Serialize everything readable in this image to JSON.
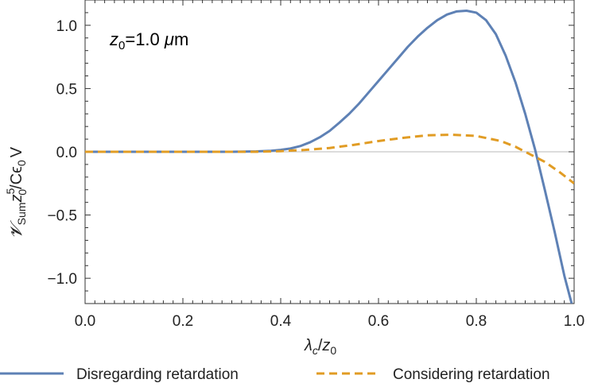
{
  "chart_data": {
    "type": "line",
    "annotation": {
      "symbol": "z",
      "subscript": "0",
      "value": "=1.0 ",
      "unit_prefix": "μ",
      "unit": "m"
    },
    "xlabel": {
      "main": "λ",
      "sub": "c",
      "slash": "/",
      "main2": "z",
      "sub2": "0"
    },
    "ylabel": {
      "main": "𝓥",
      "sub1": "Sum",
      "z": "z",
      "sup": "5",
      "sub2": "0",
      "rest": "/Cϵ",
      "sub3": "0",
      "tail": "V"
    },
    "xlim": [
      0.0,
      1.0
    ],
    "ylim": [
      -1.2,
      1.2
    ],
    "xticks": [
      "0.0",
      "0.2",
      "0.4",
      "0.6",
      "0.8",
      "1.0"
    ],
    "yticks": [
      "1.0",
      "0.5",
      "0.0",
      "−0.5",
      "−1.0"
    ],
    "ytick_values": [
      1.0,
      0.5,
      0.0,
      -0.5,
      -1.0
    ],
    "xtick_values": [
      0.0,
      0.2,
      0.4,
      0.6,
      0.8,
      1.0
    ],
    "legend_position": "bottom",
    "series": [
      {
        "name": "Disregarding retardation",
        "color": "#5e81b5",
        "dash": "solid",
        "x": [
          0.0,
          0.3,
          0.35,
          0.38,
          0.4,
          0.42,
          0.44,
          0.46,
          0.48,
          0.5,
          0.52,
          0.54,
          0.56,
          0.58,
          0.6,
          0.62,
          0.64,
          0.66,
          0.68,
          0.7,
          0.72,
          0.74,
          0.76,
          0.78,
          0.8,
          0.82,
          0.84,
          0.86,
          0.88,
          0.9,
          0.92,
          0.94,
          0.96,
          0.98,
          0.995
        ],
        "y": [
          0.0,
          0.0,
          0.003,
          0.008,
          0.015,
          0.026,
          0.045,
          0.075,
          0.115,
          0.165,
          0.23,
          0.3,
          0.38,
          0.47,
          0.56,
          0.65,
          0.74,
          0.83,
          0.91,
          0.98,
          1.04,
          1.085,
          1.11,
          1.115,
          1.1,
          1.04,
          0.93,
          0.76,
          0.55,
          0.3,
          0.02,
          -0.3,
          -0.63,
          -0.98,
          -1.2
        ]
      },
      {
        "name": "Considering retardation",
        "color": "#e19c24",
        "dash": "dashed",
        "x": [
          0.0,
          0.35,
          0.4,
          0.45,
          0.5,
          0.55,
          0.6,
          0.65,
          0.7,
          0.75,
          0.8,
          0.85,
          0.88,
          0.91,
          0.94,
          0.97,
          1.0
        ],
        "y": [
          0.0,
          0.0,
          0.005,
          0.015,
          0.03,
          0.055,
          0.085,
          0.11,
          0.13,
          0.135,
          0.125,
          0.085,
          0.04,
          -0.02,
          -0.08,
          -0.16,
          -0.25
        ]
      }
    ]
  }
}
